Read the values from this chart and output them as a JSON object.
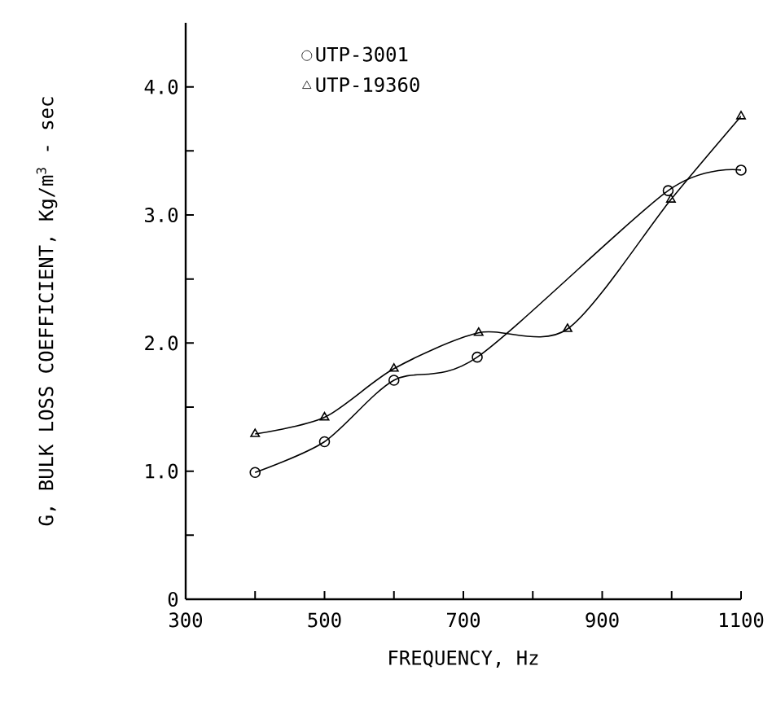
{
  "chart_data": {
    "type": "line",
    "xlabel": "FREQUENCY, Hz",
    "ylabel": "G, BULK LOSS COEFFICIENT, Kg/m$^{3}$ - sec",
    "xlim": [
      300,
      1100
    ],
    "ylim": [
      0,
      4.5
    ],
    "xticks": [
      300,
      {
        "value": 400,
        "label": null
      },
      500,
      {
        "value": 600,
        "label": null
      },
      700,
      {
        "value": 800,
        "label": null
      },
      900,
      {
        "value": 1000,
        "label": null
      },
      1100
    ],
    "yticks": [
      0,
      {
        "value": 0.5,
        "label": null
      },
      {
        "value": 1,
        "label": "1.0"
      },
      {
        "value": 1.5,
        "label": null
      },
      {
        "value": 2,
        "label": "2.0"
      },
      {
        "value": 2.5,
        "label": null
      },
      {
        "value": 3,
        "label": "3.0"
      },
      {
        "value": 3.5,
        "label": null
      },
      {
        "value": 4,
        "label": "4.0"
      }
    ],
    "grid": false,
    "legend": "top left",
    "series": [
      {
        "name": "UTP-3001",
        "color": "#000000",
        "marker": "circle",
        "x": [
          400,
          500,
          600,
          720,
          995,
          1100
        ],
        "values": [
          0.99,
          1.23,
          1.71,
          1.89,
          3.19,
          3.35
        ]
      },
      {
        "name": "UTP-19360",
        "color": "#000000",
        "marker": "triangle",
        "x": [
          400,
          500,
          600,
          722,
          850,
          999,
          1100
        ],
        "values": [
          1.29,
          1.42,
          1.8,
          2.08,
          2.11,
          3.12,
          3.77
        ]
      }
    ]
  }
}
